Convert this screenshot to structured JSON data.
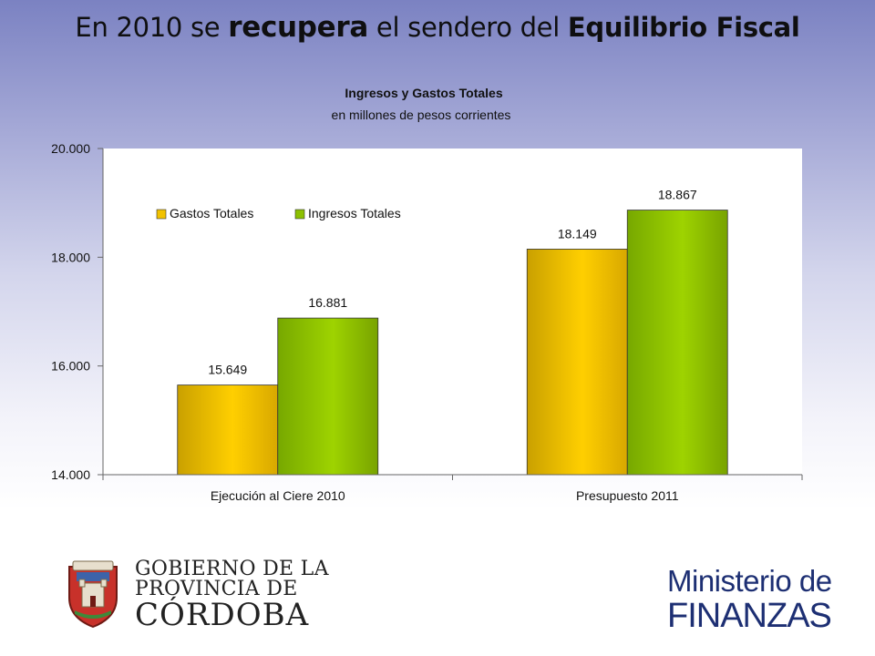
{
  "slide": {
    "title_parts": [
      "En 2010 se ",
      "recupera",
      " el sendero del ",
      "Equilibrio Fiscal"
    ]
  },
  "chart_data": {
    "type": "bar",
    "title": "Ingresos y Gastos Totales",
    "subtitle": "en millones de pesos corrientes",
    "categories": [
      "Ejecución al Ciere 2010",
      "Presupuesto 2011"
    ],
    "series": [
      {
        "name": "Gastos Totales",
        "values": [
          15649,
          18149
        ],
        "color": "#f2c200",
        "labels": [
          "15.649",
          "18.149"
        ]
      },
      {
        "name": "Ingresos Totales",
        "values": [
          16881,
          18867
        ],
        "color": "#8cc000",
        "labels": [
          "16.881",
          "18.867"
        ]
      }
    ],
    "ylim": [
      14000,
      20000
    ],
    "yticks": [
      14000,
      16000,
      18000,
      20000
    ],
    "ytick_labels": [
      "14.000",
      "16.000",
      "18.000",
      "20.000"
    ],
    "xlabel": "",
    "ylabel": "",
    "legend_position": "top-left",
    "grid": false
  },
  "footer": {
    "gov_lines": [
      "GOBIERNO DE LA",
      "PROVINCIA DE",
      "CÓRDOBA"
    ],
    "ministry_lines": [
      "Ministerio de",
      "FINANZAS"
    ]
  }
}
